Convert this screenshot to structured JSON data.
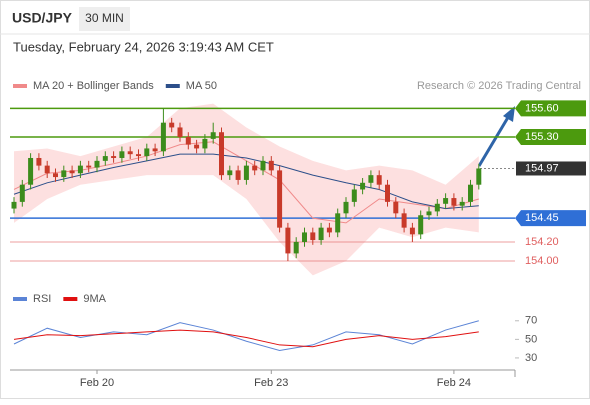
{
  "header": {
    "symbol": "USD/JPY",
    "interval": "30 MIN",
    "timestamp": "Tuesday, February 24, 2026 3:19:43 AM CET"
  },
  "chart_data": [
    {
      "type": "candlestick",
      "source": "Research © 2026 Trading Central",
      "categories": [
        null,
        null,
        null,
        null,
        null,
        null,
        null,
        null,
        null,
        null,
        "Feb 20",
        null,
        null,
        null,
        null,
        null,
        null,
        null,
        null,
        null,
        null,
        null,
        null,
        null,
        null,
        null,
        null,
        null,
        null,
        null,
        null,
        "Feb 23",
        null,
        null,
        null,
        null,
        null,
        null,
        null,
        null,
        null,
        null,
        null,
        null,
        null,
        null,
        null,
        null,
        null,
        null,
        null,
        null,
        null,
        "Feb 24",
        null,
        null,
        null
      ],
      "open": [
        154.55,
        154.62,
        154.8,
        155.08,
        155.0,
        154.92,
        154.88,
        154.95,
        154.92,
        155.0,
        154.98,
        155.05,
        155.1,
        155.08,
        155.15,
        155.12,
        155.1,
        155.18,
        155.15,
        155.45,
        155.4,
        155.3,
        155.22,
        155.18,
        155.28,
        155.35,
        154.9,
        154.95,
        154.85,
        155.0,
        154.95,
        155.05,
        154.95,
        154.35,
        154.08,
        154.2,
        154.3,
        154.22,
        154.35,
        154.3,
        154.5,
        154.62,
        154.75,
        154.82,
        154.9,
        154.8,
        154.62,
        154.5,
        154.35,
        154.28,
        154.48,
        154.52,
        154.6,
        154.66,
        154.58,
        154.62,
        154.8
      ],
      "high": [
        154.67,
        154.85,
        155.13,
        155.13,
        155.05,
        154.97,
        155.0,
        155.0,
        155.05,
        155.05,
        155.1,
        155.15,
        155.15,
        155.2,
        155.2,
        155.17,
        155.23,
        155.23,
        155.6,
        155.5,
        155.45,
        155.35,
        155.27,
        155.33,
        155.45,
        155.4,
        155.0,
        155.0,
        155.05,
        155.05,
        155.1,
        155.1,
        155.0,
        154.4,
        154.25,
        154.35,
        154.35,
        154.4,
        154.4,
        154.55,
        154.67,
        154.8,
        154.87,
        154.95,
        154.95,
        154.85,
        154.67,
        154.55,
        154.4,
        154.53,
        154.57,
        154.65,
        154.71,
        154.71,
        154.67,
        154.85,
        155.02
      ],
      "low": [
        154.5,
        154.57,
        154.75,
        154.95,
        154.87,
        154.83,
        154.83,
        154.87,
        154.87,
        154.93,
        154.93,
        155.0,
        155.03,
        155.03,
        155.07,
        155.05,
        155.05,
        155.1,
        155.1,
        155.35,
        155.25,
        155.17,
        155.13,
        155.13,
        155.23,
        154.85,
        154.85,
        154.8,
        154.8,
        154.9,
        154.9,
        154.9,
        154.3,
        154.0,
        154.03,
        154.15,
        154.17,
        154.17,
        154.25,
        154.25,
        154.45,
        154.57,
        154.7,
        154.77,
        154.75,
        154.57,
        154.45,
        154.3,
        154.2,
        154.23,
        154.43,
        154.47,
        154.55,
        154.53,
        154.53,
        154.57,
        154.75
      ],
      "close": [
        154.62,
        154.8,
        155.08,
        155.0,
        154.92,
        154.88,
        154.95,
        154.92,
        155.0,
        154.98,
        155.05,
        155.1,
        155.08,
        155.15,
        155.12,
        155.1,
        155.18,
        155.15,
        155.45,
        155.4,
        155.3,
        155.22,
        155.18,
        155.28,
        155.35,
        154.9,
        154.95,
        154.85,
        155.0,
        154.95,
        155.05,
        154.95,
        154.35,
        154.08,
        154.2,
        154.3,
        154.22,
        154.35,
        154.3,
        154.5,
        154.62,
        154.75,
        154.82,
        154.9,
        154.8,
        154.62,
        154.5,
        154.35,
        154.28,
        154.48,
        154.52,
        154.6,
        154.66,
        154.58,
        154.62,
        154.8,
        154.97
      ],
      "up_color": "#3c8c1c",
      "down_color": "#c83a2a",
      "ylim": [
        153.77,
        155.74
      ],
      "series": [
        {
          "name": "MA 20 + Bollinger Bands",
          "color": "#f08a8a",
          "band_color": "#fde0e0",
          "x": [
            0,
            4,
            8,
            12,
            16,
            20,
            24,
            28,
            32,
            36,
            40,
            44,
            48,
            52,
            56
          ],
          "values": [
            154.75,
            154.92,
            154.95,
            155.02,
            155.1,
            155.22,
            155.25,
            155.05,
            154.85,
            154.45,
            154.4,
            154.65,
            154.6,
            154.55,
            154.65
          ],
          "upper": [
            155.15,
            155.18,
            155.1,
            155.2,
            155.3,
            155.6,
            155.65,
            155.4,
            155.2,
            155.05,
            154.95,
            155.0,
            154.95,
            154.8,
            155.1
          ],
          "lower": [
            154.4,
            154.65,
            154.8,
            154.85,
            154.9,
            154.9,
            154.9,
            154.65,
            154.2,
            153.85,
            154.0,
            154.35,
            154.25,
            154.35,
            154.3
          ]
        },
        {
          "name": "MA 50",
          "color": "#2c4f8a",
          "x": [
            0,
            4,
            8,
            12,
            16,
            20,
            24,
            28,
            32,
            36,
            40,
            44,
            48,
            52,
            56
          ],
          "values": [
            154.7,
            154.82,
            154.9,
            154.98,
            155.05,
            155.12,
            155.12,
            155.08,
            155.0,
            154.9,
            154.82,
            154.75,
            154.62,
            154.55,
            154.58
          ]
        }
      ],
      "levels": [
        {
          "value": 155.6,
          "label": "155.60",
          "color": "#4c9a0e",
          "style": "box"
        },
        {
          "value": 155.3,
          "label": "155.30",
          "color": "#4c9a0e",
          "style": "box"
        },
        {
          "value": 154.97,
          "label": "154.97",
          "color": "#333333",
          "style": "current"
        },
        {
          "value": 154.45,
          "label": "154.45",
          "color": "#2f6fd6",
          "style": "box"
        },
        {
          "value": 154.2,
          "label": "154.20",
          "color": "#e06060",
          "style": "text"
        },
        {
          "value": 154,
          "label": "154.00",
          "color": "#e06060",
          "style": "text"
        }
      ]
    },
    {
      "type": "line",
      "ylim": [
        17,
        87
      ],
      "yticks": [
        70,
        50,
        30
      ],
      "series": [
        {
          "name": "RSI",
          "color": "#5b84d6",
          "x": [
            0,
            4,
            8,
            12,
            16,
            20,
            24,
            28,
            32,
            36,
            40,
            44,
            48,
            52,
            56
          ],
          "values": [
            45,
            62,
            52,
            58,
            55,
            68,
            60,
            48,
            38,
            44,
            58,
            55,
            45,
            60,
            70
          ]
        },
        {
          "name": "9MA",
          "color": "#e01010",
          "x": [
            0,
            4,
            8,
            12,
            16,
            20,
            24,
            28,
            32,
            36,
            40,
            44,
            48,
            52,
            56
          ],
          "values": [
            50,
            55,
            54,
            56,
            58,
            60,
            58,
            52,
            44,
            42,
            50,
            54,
            50,
            53,
            58
          ]
        }
      ]
    }
  ]
}
